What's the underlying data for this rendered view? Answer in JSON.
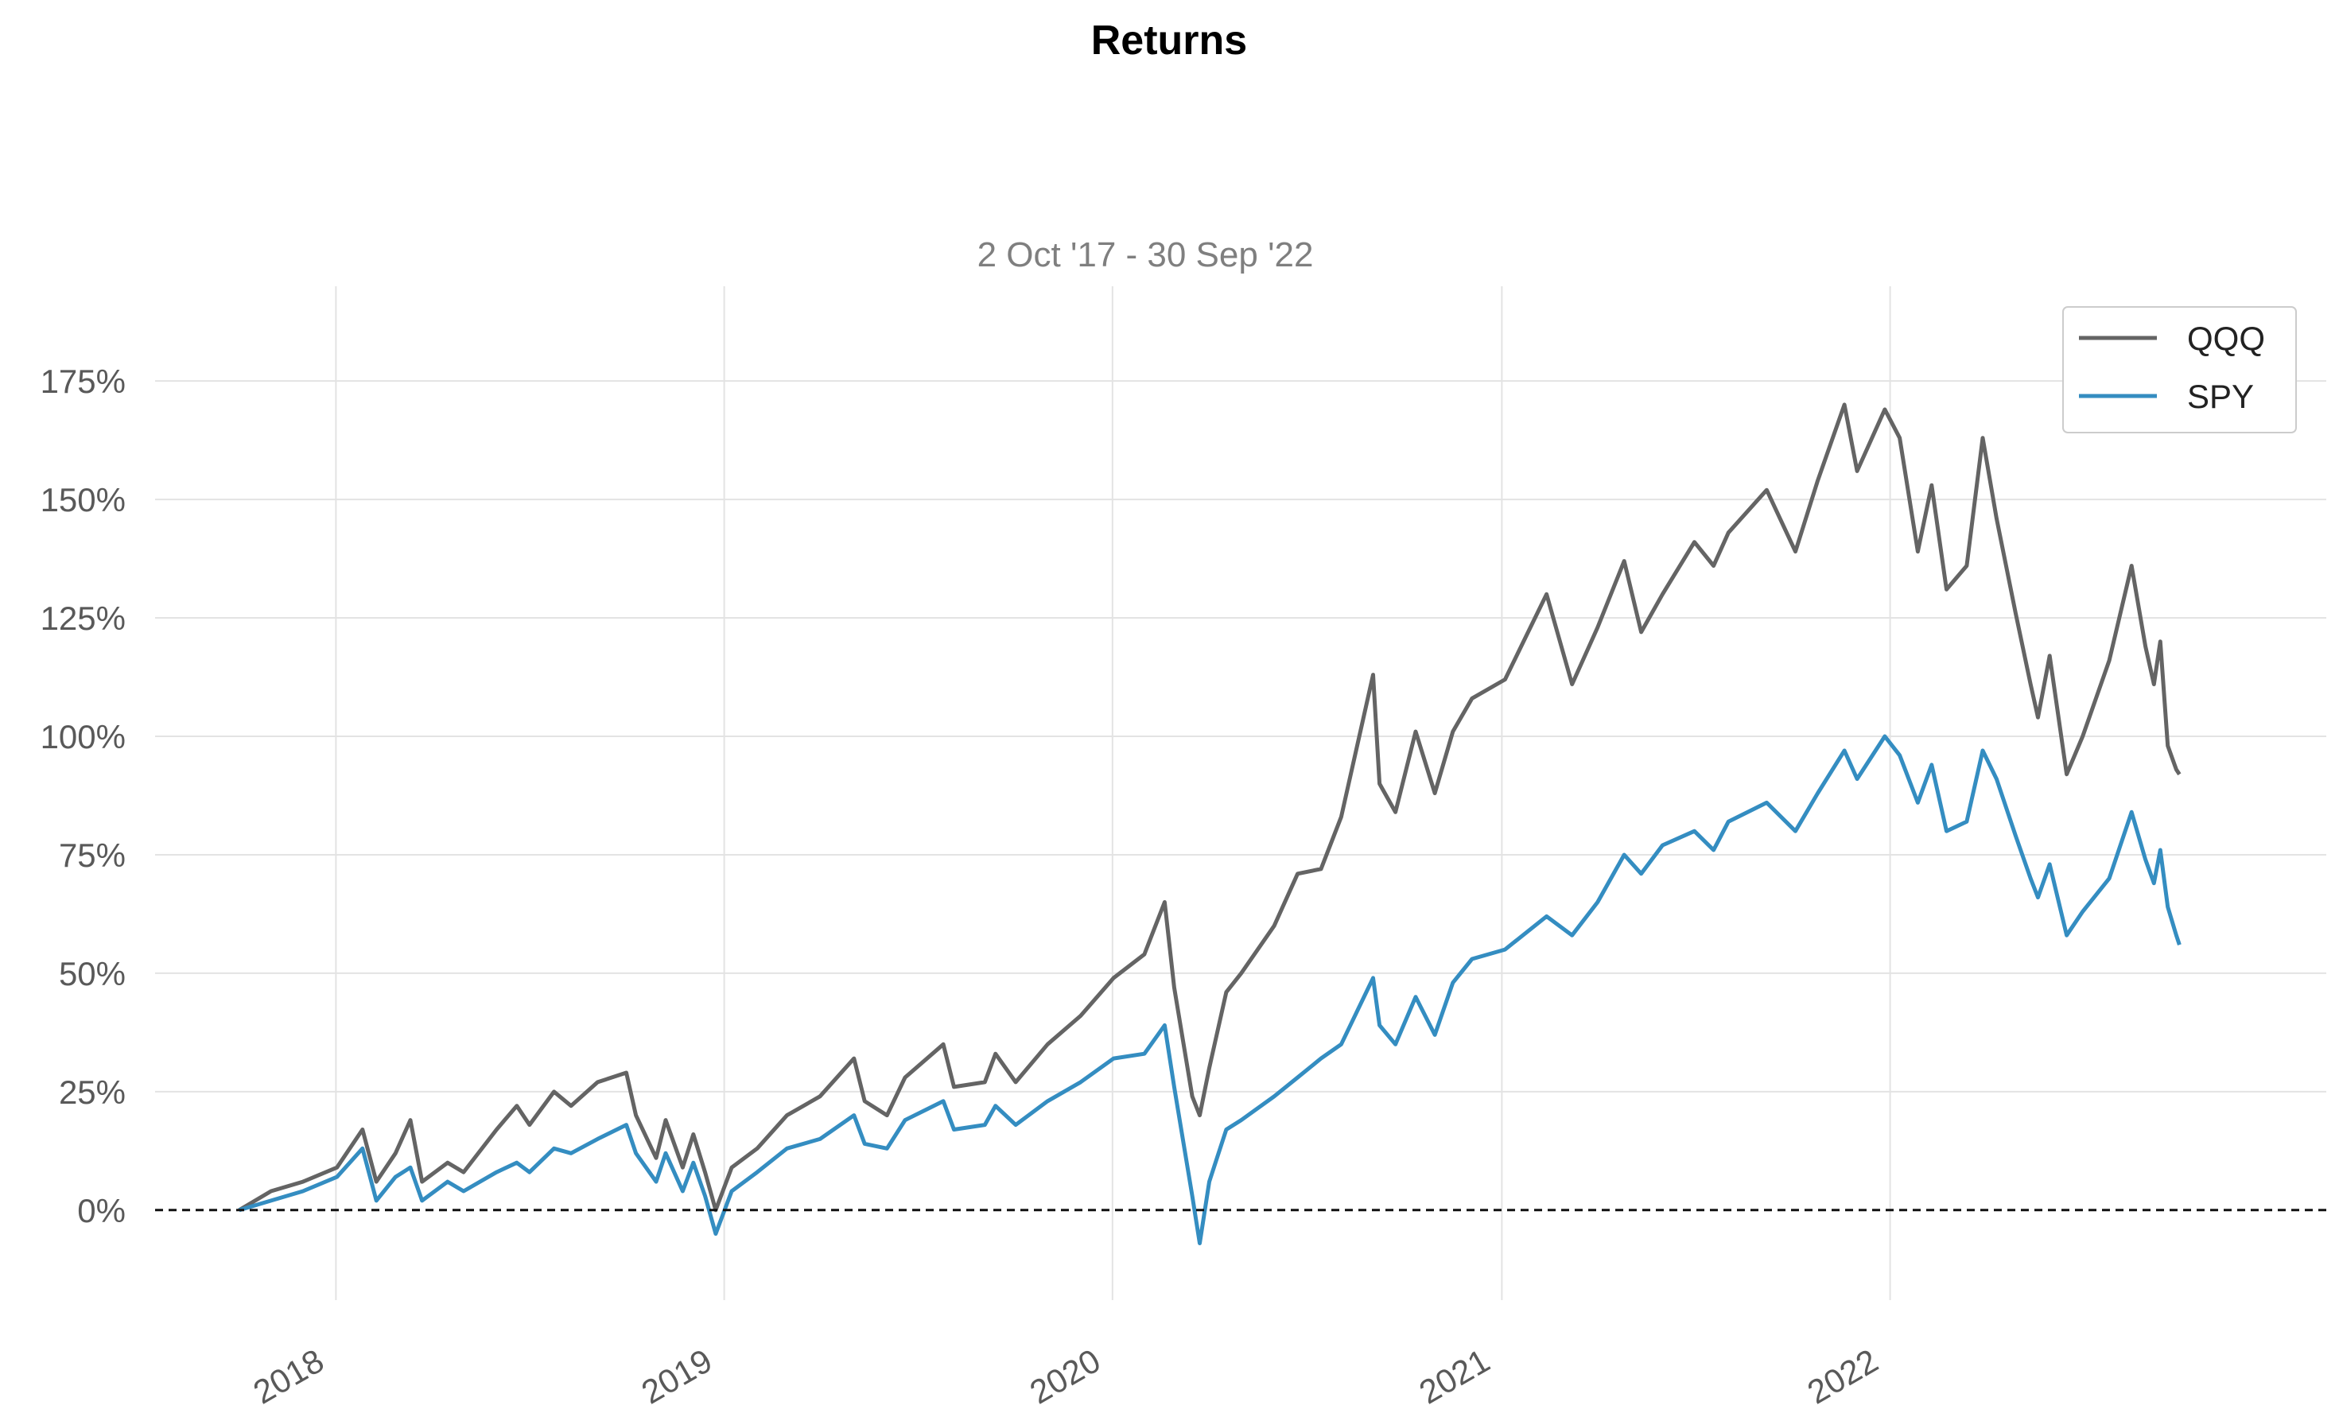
{
  "chart_data": {
    "type": "line",
    "title": "Returns",
    "subtitle": "2 Oct '17 - 30 Sep '22",
    "xlabel": "",
    "ylabel": "",
    "x_range": [
      "2017-07-15",
      "2023-02-15"
    ],
    "xticks": [
      {
        "date": "2018-01-01",
        "label": "2018"
      },
      {
        "date": "2019-01-01",
        "label": "2019"
      },
      {
        "date": "2020-01-01",
        "label": "2020"
      },
      {
        "date": "2021-01-01",
        "label": "2021"
      },
      {
        "date": "2022-01-01",
        "label": "2022"
      }
    ],
    "ylim": [
      -19,
      195
    ],
    "yticks": [
      {
        "value": 0,
        "label": "0%"
      },
      {
        "value": 25,
        "label": "25%"
      },
      {
        "value": 50,
        "label": "50%"
      },
      {
        "value": 75,
        "label": "75%"
      },
      {
        "value": 100,
        "label": "100%"
      },
      {
        "value": 125,
        "label": "125%"
      },
      {
        "value": 150,
        "label": "150%"
      },
      {
        "value": 175,
        "label": "175%"
      }
    ],
    "grid": true,
    "legend_position": "top-right",
    "baseline": 0,
    "series": [
      {
        "name": "QQQ",
        "color": "#646464",
        "points": [
          [
            "2017-10-02",
            0
          ],
          [
            "2017-11-01",
            4
          ],
          [
            "2017-12-01",
            6
          ],
          [
            "2018-01-02",
            9
          ],
          [
            "2018-01-26",
            17
          ],
          [
            "2018-02-08",
            6
          ],
          [
            "2018-02-26",
            12
          ],
          [
            "2018-03-12",
            19
          ],
          [
            "2018-03-23",
            6
          ],
          [
            "2018-04-16",
            10
          ],
          [
            "2018-05-01",
            8
          ],
          [
            "2018-06-01",
            17
          ],
          [
            "2018-06-20",
            22
          ],
          [
            "2018-07-02",
            18
          ],
          [
            "2018-07-25",
            25
          ],
          [
            "2018-08-10",
            22
          ],
          [
            "2018-09-04",
            27
          ],
          [
            "2018-10-01",
            29
          ],
          [
            "2018-10-10",
            20
          ],
          [
            "2018-10-29",
            11
          ],
          [
            "2018-11-07",
            19
          ],
          [
            "2018-11-23",
            9
          ],
          [
            "2018-12-03",
            16
          ],
          [
            "2018-12-14",
            8
          ],
          [
            "2018-12-24",
            0
          ],
          [
            "2019-01-08",
            9
          ],
          [
            "2019-02-01",
            13
          ],
          [
            "2019-03-01",
            20
          ],
          [
            "2019-04-01",
            24
          ],
          [
            "2019-05-03",
            32
          ],
          [
            "2019-05-13",
            23
          ],
          [
            "2019-06-03",
            20
          ],
          [
            "2019-06-20",
            28
          ],
          [
            "2019-07-26",
            35
          ],
          [
            "2019-08-05",
            26
          ],
          [
            "2019-09-03",
            27
          ],
          [
            "2019-09-13",
            33
          ],
          [
            "2019-10-02",
            27
          ],
          [
            "2019-11-01",
            35
          ],
          [
            "2019-12-02",
            41
          ],
          [
            "2020-01-02",
            49
          ],
          [
            "2020-01-31",
            54
          ],
          [
            "2020-02-19",
            65
          ],
          [
            "2020-02-28",
            47
          ],
          [
            "2020-03-16",
            24
          ],
          [
            "2020-03-23",
            20
          ],
          [
            "2020-04-01",
            30
          ],
          [
            "2020-04-17",
            46
          ],
          [
            "2020-05-01",
            50
          ],
          [
            "2020-06-01",
            60
          ],
          [
            "2020-06-23",
            71
          ],
          [
            "2020-07-15",
            72
          ],
          [
            "2020-08-03",
            83
          ],
          [
            "2020-09-02",
            113
          ],
          [
            "2020-09-08",
            90
          ],
          [
            "2020-09-23",
            84
          ],
          [
            "2020-10-12",
            101
          ],
          [
            "2020-10-30",
            88
          ],
          [
            "2020-11-16",
            101
          ],
          [
            "2020-12-04",
            108
          ],
          [
            "2021-01-04",
            112
          ],
          [
            "2021-02-12",
            130
          ],
          [
            "2021-03-08",
            111
          ],
          [
            "2021-04-01",
            123
          ],
          [
            "2021-04-26",
            137
          ],
          [
            "2021-05-12",
            122
          ],
          [
            "2021-06-01",
            130
          ],
          [
            "2021-07-01",
            141
          ],
          [
            "2021-07-19",
            136
          ],
          [
            "2021-08-02",
            143
          ],
          [
            "2021-09-07",
            152
          ],
          [
            "2021-10-04",
            139
          ],
          [
            "2021-10-25",
            154
          ],
          [
            "2021-11-19",
            170
          ],
          [
            "2021-12-01",
            156
          ],
          [
            "2021-12-27",
            169
          ],
          [
            "2022-01-10",
            163
          ],
          [
            "2022-01-27",
            139
          ],
          [
            "2022-02-09",
            153
          ],
          [
            "2022-02-23",
            131
          ],
          [
            "2022-03-14",
            136
          ],
          [
            "2022-03-29",
            163
          ],
          [
            "2022-04-11",
            146
          ],
          [
            "2022-04-29",
            126
          ],
          [
            "2022-05-13",
            111
          ],
          [
            "2022-05-20",
            104
          ],
          [
            "2022-05-31",
            117
          ],
          [
            "2022-06-16",
            92
          ],
          [
            "2022-07-01",
            100
          ],
          [
            "2022-07-26",
            116
          ],
          [
            "2022-08-16",
            136
          ],
          [
            "2022-08-29",
            119
          ],
          [
            "2022-09-06",
            111
          ],
          [
            "2022-09-12",
            120
          ],
          [
            "2022-09-19",
            98
          ],
          [
            "2022-09-27",
            93
          ],
          [
            "2022-09-30",
            92
          ]
        ]
      },
      {
        "name": "SPY",
        "color": "#348dc1",
        "points": [
          [
            "2017-10-02",
            0
          ],
          [
            "2017-11-01",
            2
          ],
          [
            "2017-12-01",
            4
          ],
          [
            "2018-01-02",
            7
          ],
          [
            "2018-01-26",
            13
          ],
          [
            "2018-02-08",
            2
          ],
          [
            "2018-02-26",
            7
          ],
          [
            "2018-03-12",
            9
          ],
          [
            "2018-03-23",
            2
          ],
          [
            "2018-04-16",
            6
          ],
          [
            "2018-05-01",
            4
          ],
          [
            "2018-06-01",
            8
          ],
          [
            "2018-06-20",
            10
          ],
          [
            "2018-07-02",
            8
          ],
          [
            "2018-07-25",
            13
          ],
          [
            "2018-08-10",
            12
          ],
          [
            "2018-09-04",
            15
          ],
          [
            "2018-10-01",
            18
          ],
          [
            "2018-10-10",
            12
          ],
          [
            "2018-10-29",
            6
          ],
          [
            "2018-11-07",
            12
          ],
          [
            "2018-11-23",
            4
          ],
          [
            "2018-12-03",
            10
          ],
          [
            "2018-12-14",
            3
          ],
          [
            "2018-12-24",
            -5
          ],
          [
            "2019-01-08",
            4
          ],
          [
            "2019-02-01",
            8
          ],
          [
            "2019-03-01",
            13
          ],
          [
            "2019-04-01",
            15
          ],
          [
            "2019-05-03",
            20
          ],
          [
            "2019-05-13",
            14
          ],
          [
            "2019-06-03",
            13
          ],
          [
            "2019-06-20",
            19
          ],
          [
            "2019-07-26",
            23
          ],
          [
            "2019-08-05",
            17
          ],
          [
            "2019-09-03",
            18
          ],
          [
            "2019-09-13",
            22
          ],
          [
            "2019-10-02",
            18
          ],
          [
            "2019-11-01",
            23
          ],
          [
            "2019-12-02",
            27
          ],
          [
            "2020-01-02",
            32
          ],
          [
            "2020-01-31",
            33
          ],
          [
            "2020-02-19",
            39
          ],
          [
            "2020-02-28",
            26
          ],
          [
            "2020-03-16",
            3
          ],
          [
            "2020-03-23",
            -7
          ],
          [
            "2020-04-01",
            6
          ],
          [
            "2020-04-17",
            17
          ],
          [
            "2020-05-01",
            19
          ],
          [
            "2020-06-01",
            24
          ],
          [
            "2020-06-23",
            28
          ],
          [
            "2020-07-15",
            32
          ],
          [
            "2020-08-03",
            35
          ],
          [
            "2020-09-02",
            49
          ],
          [
            "2020-09-08",
            39
          ],
          [
            "2020-09-23",
            35
          ],
          [
            "2020-10-12",
            45
          ],
          [
            "2020-10-30",
            37
          ],
          [
            "2020-11-16",
            48
          ],
          [
            "2020-12-04",
            53
          ],
          [
            "2021-01-04",
            55
          ],
          [
            "2021-02-12",
            62
          ],
          [
            "2021-03-08",
            58
          ],
          [
            "2021-04-01",
            65
          ],
          [
            "2021-04-26",
            75
          ],
          [
            "2021-05-12",
            71
          ],
          [
            "2021-06-01",
            77
          ],
          [
            "2021-07-01",
            80
          ],
          [
            "2021-07-19",
            76
          ],
          [
            "2021-08-02",
            82
          ],
          [
            "2021-09-07",
            86
          ],
          [
            "2021-10-04",
            80
          ],
          [
            "2021-10-25",
            88
          ],
          [
            "2021-11-19",
            97
          ],
          [
            "2021-12-01",
            91
          ],
          [
            "2021-12-27",
            100
          ],
          [
            "2022-01-10",
            96
          ],
          [
            "2022-01-27",
            86
          ],
          [
            "2022-02-09",
            94
          ],
          [
            "2022-02-23",
            80
          ],
          [
            "2022-03-14",
            82
          ],
          [
            "2022-03-29",
            97
          ],
          [
            "2022-04-11",
            91
          ],
          [
            "2022-04-29",
            79
          ],
          [
            "2022-05-13",
            70
          ],
          [
            "2022-05-20",
            66
          ],
          [
            "2022-05-31",
            73
          ],
          [
            "2022-06-16",
            58
          ],
          [
            "2022-07-01",
            63
          ],
          [
            "2022-07-26",
            70
          ],
          [
            "2022-08-16",
            84
          ],
          [
            "2022-08-29",
            74
          ],
          [
            "2022-09-06",
            69
          ],
          [
            "2022-09-12",
            76
          ],
          [
            "2022-09-19",
            64
          ],
          [
            "2022-09-27",
            58
          ],
          [
            "2022-09-30",
            56
          ]
        ]
      }
    ]
  }
}
